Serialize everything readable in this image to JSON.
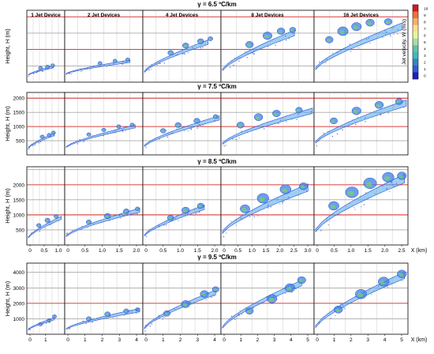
{
  "chart_data": [
    {
      "type": "scatter",
      "title": "γ = 6.5 ºC/km",
      "ylabel": "Height, H (m)",
      "yticks": [],
      "panels": [
        {
          "title": "1 Jet Device",
          "xticks": [],
          "plume": {
            "x0": 0.0,
            "x1": 0.72,
            "h0": 220,
            "h1": 470,
            "w": 70,
            "lumps": [
              [
                0.35,
                430,
                40
              ],
              [
                0.55,
                470,
                45
              ],
              [
                0.7,
                510,
                40
              ]
            ]
          }
        },
        {
          "title": "2 Jet Devices",
          "xticks": [],
          "plume": {
            "x0": 0.0,
            "x1": 0.85,
            "h0": 260,
            "h1": 640,
            "w": 80,
            "lumps": [
              [
                0.45,
                580,
                50
              ],
              [
                0.65,
                650,
                60
              ],
              [
                0.82,
                690,
                45
              ]
            ]
          }
        },
        {
          "title": "4 Jet Devices",
          "xticks": [],
          "plume": {
            "x0": 0.0,
            "x1": 0.85,
            "h0": 320,
            "h1": 1220,
            "w": 140,
            "lumps": [
              [
                0.35,
                900,
                80
              ],
              [
                0.55,
                1120,
                90
              ],
              [
                0.75,
                1250,
                90
              ],
              [
                0.88,
                1330,
                70
              ]
            ]
          }
        },
        {
          "title": "8 Jet Devices",
          "xticks": [],
          "plume": {
            "x0": 0.0,
            "x1": 0.8,
            "h0": 380,
            "h1": 1500,
            "w": 180,
            "lumps": [
              [
                0.3,
                1150,
                110
              ],
              [
                0.5,
                1420,
                130
              ],
              [
                0.65,
                1560,
                110
              ],
              [
                0.78,
                1600,
                90
              ]
            ]
          }
        },
        {
          "title": "16 Jet Devices",
          "xticks": [],
          "plume": {
            "x0": 0.0,
            "x1": 0.95,
            "h0": 420,
            "h1": 1700,
            "w": 220,
            "lumps": [
              [
                0.15,
                1300,
                110
              ],
              [
                0.3,
                1560,
                150
              ],
              [
                0.45,
                1700,
                140
              ],
              [
                0.6,
                1820,
                120
              ],
              [
                0.8,
                1850,
                110
              ]
            ]
          }
        }
      ]
    },
    {
      "type": "scatter",
      "title": "γ = 7.5 ºC/km",
      "ylabel": "Height, H (m)",
      "yticks": [
        "500",
        "1000",
        "1500",
        "2000"
      ],
      "panels": [
        {
          "title": "",
          "xticks": [],
          "plume": {
            "x0": 0.0,
            "x1": 0.75,
            "h0": 250,
            "h1": 720,
            "w": 90,
            "lumps": [
              [
                0.4,
                640,
                55
              ],
              [
                0.6,
                700,
                55
              ],
              [
                0.72,
                780,
                45
              ]
            ]
          }
        },
        {
          "title": "",
          "xticks": [],
          "plume": {
            "x0": 0.0,
            "x1": 0.92,
            "h0": 280,
            "h1": 1000,
            "w": 110,
            "lumps": [
              [
                0.3,
                720,
                60
              ],
              [
                0.5,
                880,
                70
              ],
              [
                0.7,
                1000,
                70
              ],
              [
                0.88,
                1060,
                60
              ]
            ]
          }
        },
        {
          "title": "",
          "xticks": [],
          "plume": {
            "x0": 0.0,
            "x1": 1.0,
            "h0": 320,
            "h1": 1300,
            "w": 160,
            "lumps": [
              [
                0.25,
                850,
                90
              ],
              [
                0.45,
                1050,
                100
              ],
              [
                0.7,
                1200,
                100
              ],
              [
                0.95,
                1350,
                80
              ]
            ]
          }
        },
        {
          "title": "",
          "xticks": [],
          "plume": {
            "x0": 0.0,
            "x1": 1.0,
            "h0": 400,
            "h1": 1550,
            "w": 200,
            "lumps": [
              [
                0.2,
                1050,
                120
              ],
              [
                0.4,
                1330,
                140
              ],
              [
                0.6,
                1460,
                130
              ],
              [
                0.85,
                1580,
                110
              ]
            ]
          }
        },
        {
          "title": "",
          "xticks": [],
          "plume": {
            "x0": 0.0,
            "x1": 1.0,
            "h0": 450,
            "h1": 1820,
            "w": 230,
            "lumps": [
              [
                0.2,
                1200,
                120
              ],
              [
                0.45,
                1550,
                150
              ],
              [
                0.7,
                1760,
                140
              ],
              [
                0.92,
                1880,
                120
              ]
            ]
          }
        }
      ]
    },
    {
      "type": "scatter",
      "title": "γ = 8.5 ºC/km",
      "ylabel": "Height, H (m)",
      "yticks": [
        "500",
        "1000",
        "1500",
        "2000"
      ],
      "panels": [
        {
          "title": "",
          "xticks": [
            "0",
            "0.5",
            "1.0"
          ],
          "plume": {
            "x0": 0.0,
            "x1": 0.95,
            "h0": 250,
            "h1": 900,
            "w": 110,
            "lumps": [
              [
                0.3,
                650,
                70
              ],
              [
                0.55,
                820,
                80
              ],
              [
                0.8,
                950,
                70
              ]
            ]
          }
        },
        {
          "title": "",
          "xticks": [
            "0",
            "0.5",
            "1.0",
            "1.5",
            "2.0"
          ],
          "plume": {
            "x0": 0.0,
            "x1": 0.98,
            "h0": 300,
            "h1": 1150,
            "w": 140,
            "lumps": [
              [
                0.3,
                760,
                80
              ],
              [
                0.55,
                960,
                100
              ],
              [
                0.8,
                1120,
                90
              ],
              [
                0.95,
                1200,
                70
              ]
            ]
          }
        },
        {
          "title": "",
          "xticks": [
            "0",
            "0.5",
            "1.0",
            "1.5",
            "2.0"
          ],
          "plume": {
            "x0": 0.0,
            "x1": 0.8,
            "h0": 320,
            "h1": 1250,
            "w": 160,
            "lumps": [
              [
                0.35,
                900,
                100
              ],
              [
                0.55,
                1150,
                120
              ],
              [
                0.75,
                1300,
                100
              ]
            ]
          }
        },
        {
          "title": "",
          "xticks": [
            "0",
            "0.5",
            "1.0",
            "1.5",
            "2.0",
            "2.5",
            "3.0"
          ],
          "plume": {
            "x0": 0.0,
            "x1": 0.95,
            "h0": 420,
            "h1": 1900,
            "w": 260,
            "lumps": [
              [
                0.25,
                1200,
                150
              ],
              [
                0.45,
                1550,
                180
              ],
              [
                0.7,
                1850,
                170
              ],
              [
                0.9,
                1950,
                130
              ]
            ]
          }
        },
        {
          "title": "",
          "xticks": [
            "0",
            "0.5",
            "1.0",
            "1.5",
            "2.0",
            "2.5"
          ],
          "plume": {
            "x0": 0.0,
            "x1": 0.98,
            "h0": 480,
            "h1": 2200,
            "w": 300,
            "lumps": [
              [
                0.2,
                1300,
                160
              ],
              [
                0.4,
                1750,
                200
              ],
              [
                0.6,
                2050,
                200
              ],
              [
                0.8,
                2250,
                180
              ],
              [
                0.95,
                2300,
                140
              ]
            ]
          }
        }
      ],
      "xlabel": "X (km)"
    },
    {
      "type": "scatter",
      "title": "γ = 9.5 ºC/km",
      "ylabel": "Height, H (m)",
      "yticks": [
        "1000",
        "2000",
        "3000",
        "4000"
      ],
      "panels": [
        {
          "title": "",
          "xticks": [
            "0",
            "1"
          ],
          "plume": {
            "x0": 0.0,
            "x1": 0.75,
            "h0": 300,
            "h1": 1000,
            "w": 160,
            "lumps": [
              [
                0.35,
                650,
                120
              ],
              [
                0.6,
                900,
                120
              ],
              [
                0.75,
                1150,
                100
              ]
            ]
          }
        },
        {
          "title": "",
          "xticks": [
            "0",
            "1",
            "2",
            "3",
            "4"
          ],
          "plume": {
            "x0": 0.0,
            "x1": 0.98,
            "h0": 350,
            "h1": 1550,
            "w": 230,
            "lumps": [
              [
                0.3,
                1000,
                150
              ],
              [
                0.55,
                1300,
                170
              ],
              [
                0.8,
                1500,
                160
              ],
              [
                0.95,
                1600,
                130
              ]
            ]
          }
        },
        {
          "title": "",
          "xticks": [
            "0",
            "1",
            "2",
            "3",
            "4"
          ],
          "plume": {
            "x0": 0.0,
            "x1": 0.95,
            "h0": 400,
            "h1": 2700,
            "w": 320,
            "lumps": [
              [
                0.3,
                1350,
                200
              ],
              [
                0.55,
                1950,
                260
              ],
              [
                0.8,
                2600,
                250
              ],
              [
                0.95,
                2900,
                200
              ]
            ]
          }
        },
        {
          "title": "",
          "xticks": [
            "0",
            "1",
            "2",
            "3",
            "4",
            "5"
          ],
          "plume": {
            "x0": 0.0,
            "x1": 0.88,
            "h0": 450,
            "h1": 3300,
            "w": 380,
            "lumps": [
              [
                0.3,
                1500,
                230
              ],
              [
                0.55,
                2300,
                300
              ],
              [
                0.75,
                3000,
                300
              ],
              [
                0.88,
                3500,
                250
              ]
            ]
          }
        },
        {
          "title": "",
          "xticks": [
            "0",
            "1",
            "2",
            "3",
            "4",
            "5"
          ],
          "plume": {
            "x0": 0.0,
            "x1": 0.98,
            "h0": 500,
            "h1": 3800,
            "w": 450,
            "lumps": [
              [
                0.25,
                1600,
                260
              ],
              [
                0.5,
                2600,
                340
              ],
              [
                0.75,
                3400,
                330
              ],
              [
                0.95,
                3900,
                280
              ]
            ]
          }
        }
      ],
      "xlabel": "X (km)"
    }
  ],
  "colorbar": {
    "label": "Jet velocity, W (m/s)",
    "ticks": [
      "18",
      "9",
      "8",
      "7",
      "6",
      "5",
      "4",
      "3",
      "2",
      "1",
      "0"
    ],
    "colors": [
      "#d7191c",
      "#f46d43",
      "#fdae61",
      "#fee08b",
      "#e6f598",
      "#abdda4",
      "#66c2a5",
      "#3fb8c4",
      "#3288bd",
      "#2c5fd0",
      "#2020c0"
    ]
  },
  "style": {
    "reference_line_color": "#cc0000",
    "plume_edge_color": "#2a4fd6",
    "plume_core_color": "#4aa8e8",
    "plume_hot_color": "#7fd16a"
  }
}
